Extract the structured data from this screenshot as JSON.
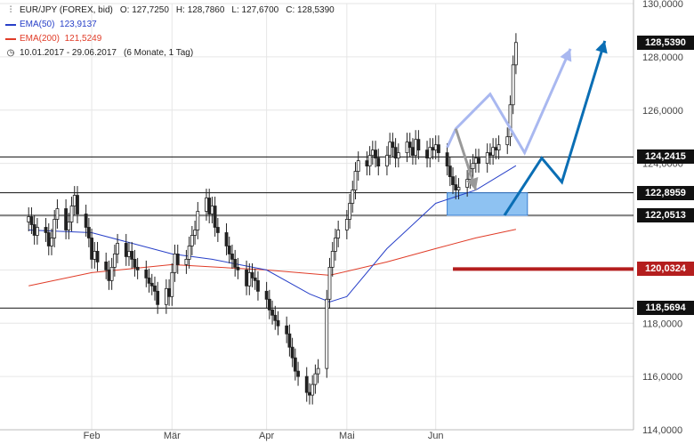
{
  "instrument": {
    "name": "EUR/JPY (FOREX, bid)",
    "open_label": "O:",
    "open": "127,7250",
    "high_label": "H:",
    "high": "128,7860",
    "low_label": "L:",
    "low": "127,6700",
    "close_label": "C:",
    "close": "128,5390",
    "bar_icon": "bar-chart-icon"
  },
  "indicators": [
    {
      "name": "EMA(50)",
      "value": "123,9137",
      "color": "#2840c8"
    },
    {
      "name": "EMA(200)",
      "value": "121,5249",
      "color": "#e03c28"
    }
  ],
  "period": {
    "icon": "clock-icon",
    "range": "10.01.2017 - 29.06.2017",
    "detail": "(6 Monate, 1 Tag)"
  },
  "price_labels": [
    {
      "text": "128,5390",
      "value": 128.539,
      "bg": "#111111"
    },
    {
      "text": "124,2415",
      "value": 124.2415,
      "bg": "#111111"
    },
    {
      "text": "122,8959",
      "value": 122.8959,
      "bg": "#111111"
    },
    {
      "text": "122,0513",
      "value": 122.0513,
      "bg": "#111111"
    },
    {
      "text": "120,0324",
      "value": 120.0324,
      "bg": "#b41e1e"
    },
    {
      "text": "118,5694",
      "value": 118.5694,
      "bg": "#111111"
    }
  ],
  "chart_data": {
    "type": "candlestick",
    "x_start": "2017-01-10",
    "x_end": "2017-06-29",
    "ylim": [
      114,
      130
    ],
    "y_ticks": [
      {
        "value": 114,
        "label": "114,0000"
      },
      {
        "value": 116,
        "label": "116,0000"
      },
      {
        "value": 118,
        "label": "118,0000"
      },
      {
        "value": 120,
        "label": "120,0000"
      },
      {
        "value": 122,
        "label": "122,0000"
      },
      {
        "value": 124,
        "label": "124,0000"
      },
      {
        "value": 126,
        "label": "126,0000"
      },
      {
        "value": 128,
        "label": "128,0000"
      },
      {
        "value": 130,
        "label": "130,0000"
      }
    ],
    "x_ticks": [
      {
        "date": "2017-02-01",
        "label": "Feb"
      },
      {
        "date": "2017-03-01",
        "label": "Mär"
      },
      {
        "date": "2017-04-03",
        "label": "Apr"
      },
      {
        "date": "2017-05-01",
        "label": "Mai"
      },
      {
        "date": "2017-06-01",
        "label": "Jun"
      }
    ],
    "close_series": [
      [
        "2017-01-10",
        122.0
      ],
      [
        "2017-01-11",
        121.7
      ],
      [
        "2017-01-12",
        121.3
      ],
      [
        "2017-01-13",
        121.6
      ],
      [
        "2017-01-16",
        121.4
      ],
      [
        "2017-01-17",
        120.9
      ],
      [
        "2017-01-18",
        121.2
      ],
      [
        "2017-01-19",
        121.9
      ],
      [
        "2017-01-20",
        122.3
      ],
      [
        "2017-01-23",
        121.5
      ],
      [
        "2017-01-24",
        121.8
      ],
      [
        "2017-01-25",
        122.4
      ],
      [
        "2017-01-26",
        122.8
      ],
      [
        "2017-01-27",
        122.1
      ],
      [
        "2017-01-30",
        121.6
      ],
      [
        "2017-01-31",
        121.2
      ],
      [
        "2017-02-01",
        120.4
      ],
      [
        "2017-02-02",
        120.7
      ],
      [
        "2017-02-03",
        120.3
      ],
      [
        "2017-02-06",
        120.0
      ],
      [
        "2017-02-07",
        119.6
      ],
      [
        "2017-02-08",
        120.1
      ],
      [
        "2017-02-09",
        120.6
      ],
      [
        "2017-02-10",
        121.0
      ],
      [
        "2017-02-13",
        120.5
      ],
      [
        "2017-02-14",
        120.7
      ],
      [
        "2017-02-15",
        120.4
      ],
      [
        "2017-02-16",
        120.1
      ],
      [
        "2017-02-17",
        120.0
      ],
      [
        "2017-02-20",
        119.7
      ],
      [
        "2017-02-21",
        119.5
      ],
      [
        "2017-02-22",
        119.4
      ],
      [
        "2017-02-23",
        119.2
      ],
      [
        "2017-02-24",
        118.7
      ],
      [
        "2017-02-27",
        119.3
      ],
      [
        "2017-02-28",
        119.0
      ],
      [
        "2017-03-01",
        119.9
      ],
      [
        "2017-03-02",
        120.6
      ],
      [
        "2017-03-03",
        120.2
      ],
      [
        "2017-03-06",
        120.4
      ],
      [
        "2017-03-07",
        120.9
      ],
      [
        "2017-03-08",
        121.3
      ],
      [
        "2017-03-09",
        121.5
      ],
      [
        "2017-03-10",
        122.2
      ],
      [
        "2017-03-13",
        122.7
      ],
      [
        "2017-03-14",
        122.1
      ],
      [
        "2017-03-15",
        122.4
      ],
      [
        "2017-03-16",
        121.6
      ],
      [
        "2017-03-17",
        121.4
      ],
      [
        "2017-03-20",
        120.9
      ],
      [
        "2017-03-21",
        120.6
      ],
      [
        "2017-03-22",
        120.4
      ],
      [
        "2017-03-23",
        120.1
      ],
      [
        "2017-03-24",
        120.0
      ],
      [
        "2017-03-27",
        119.4
      ],
      [
        "2017-03-28",
        119.9
      ],
      [
        "2017-03-29",
        119.7
      ],
      [
        "2017-03-30",
        119.6
      ],
      [
        "2017-03-31",
        119.2
      ],
      [
        "2017-04-03",
        118.9
      ],
      [
        "2017-04-04",
        118.5
      ],
      [
        "2017-04-05",
        118.3
      ],
      [
        "2017-04-06",
        118.1
      ],
      [
        "2017-04-07",
        117.9
      ],
      [
        "2017-04-10",
        117.6
      ],
      [
        "2017-04-11",
        117.1
      ],
      [
        "2017-04-12",
        116.7
      ],
      [
        "2017-04-13",
        116.2
      ],
      [
        "2017-04-14",
        116.0
      ],
      [
        "2017-04-17",
        115.4
      ],
      [
        "2017-04-18",
        115.3
      ],
      [
        "2017-04-19",
        115.7
      ],
      [
        "2017-04-20",
        116.1
      ],
      [
        "2017-04-21",
        116.3
      ],
      [
        "2017-04-24",
        118.9
      ],
      [
        "2017-04-25",
        120.1
      ],
      [
        "2017-04-26",
        120.7
      ],
      [
        "2017-04-27",
        121.2
      ],
      [
        "2017-04-28",
        121.5
      ],
      [
        "2017-05-01",
        121.9
      ],
      [
        "2017-05-02",
        122.5
      ],
      [
        "2017-05-03",
        123.0
      ],
      [
        "2017-05-04",
        123.7
      ],
      [
        "2017-05-05",
        124.1
      ],
      [
        "2017-05-08",
        123.9
      ],
      [
        "2017-05-09",
        124.3
      ],
      [
        "2017-05-10",
        124.5
      ],
      [
        "2017-05-11",
        124.2
      ],
      [
        "2017-05-12",
        123.9
      ],
      [
        "2017-05-15",
        124.3
      ],
      [
        "2017-05-16",
        124.8
      ],
      [
        "2017-05-17",
        124.6
      ],
      [
        "2017-05-18",
        124.2
      ],
      [
        "2017-05-19",
        124.4
      ],
      [
        "2017-05-22",
        124.8
      ],
      [
        "2017-05-23",
        124.6
      ],
      [
        "2017-05-24",
        124.3
      ],
      [
        "2017-05-25",
        124.9
      ],
      [
        "2017-05-26",
        124.5
      ],
      [
        "2017-05-29",
        124.2
      ],
      [
        "2017-05-30",
        124.6
      ],
      [
        "2017-05-31",
        124.5
      ],
      [
        "2017-06-01",
        124.7
      ],
      [
        "2017-06-02",
        124.4
      ],
      [
        "2017-06-05",
        123.9
      ],
      [
        "2017-06-06",
        123.5
      ],
      [
        "2017-06-07",
        123.2
      ],
      [
        "2017-06-08",
        123.0
      ],
      [
        "2017-06-09",
        123.1
      ],
      [
        "2017-06-12",
        123.4
      ],
      [
        "2017-06-13",
        123.8
      ],
      [
        "2017-06-14",
        124.0
      ],
      [
        "2017-06-15",
        124.2
      ],
      [
        "2017-06-16",
        124.0
      ],
      [
        "2017-06-19",
        124.4
      ],
      [
        "2017-06-20",
        124.3
      ],
      [
        "2017-06-21",
        124.6
      ],
      [
        "2017-06-22",
        124.5
      ],
      [
        "2017-06-23",
        124.7
      ],
      [
        "2017-06-26",
        125.0
      ],
      [
        "2017-06-27",
        126.2
      ],
      [
        "2017-06-28",
        127.7
      ],
      [
        "2017-06-29",
        128.539
      ]
    ],
    "ema50": [
      [
        "2017-01-10",
        121.5
      ],
      [
        "2017-02-01",
        121.4
      ],
      [
        "2017-02-15",
        121.0
      ],
      [
        "2017-03-01",
        120.6
      ],
      [
        "2017-03-15",
        120.4
      ],
      [
        "2017-04-03",
        120.0
      ],
      [
        "2017-04-18",
        119.1
      ],
      [
        "2017-04-25",
        118.8
      ],
      [
        "2017-05-01",
        119.0
      ],
      [
        "2017-05-15",
        120.8
      ],
      [
        "2017-06-01",
        122.5
      ],
      [
        "2017-06-15",
        123.0
      ],
      [
        "2017-06-29",
        123.9137
      ]
    ],
    "ema200": [
      [
        "2017-01-10",
        119.4
      ],
      [
        "2017-02-01",
        119.9
      ],
      [
        "2017-03-01",
        120.2
      ],
      [
        "2017-04-03",
        120.0
      ],
      [
        "2017-04-25",
        119.8
      ],
      [
        "2017-05-15",
        120.3
      ],
      [
        "2017-06-01",
        120.8
      ],
      [
        "2017-06-15",
        121.2
      ],
      [
        "2017-06-29",
        121.5249
      ]
    ],
    "horizontal_levels": [
      124.2415,
      122.8959,
      122.0513,
      118.5694
    ],
    "highlight_level": 120.0324,
    "support_zone": {
      "x_from": "2017-06-05",
      "x_to": "2017-07-03",
      "y_from": 122.0513,
      "y_to": 122.8959
    },
    "arrows": [
      {
        "name": "dark-blue",
        "color": "#0a6eb4",
        "points": [
          [
            "2017-06-25",
            122.05
          ],
          [
            "2017-07-08",
            124.2
          ],
          [
            "2017-07-15",
            123.3
          ],
          [
            "2017-07-30",
            128.6
          ]
        ]
      },
      {
        "name": "light-blue",
        "color": "#a9b8f0",
        "points": [
          [
            "2017-06-05",
            124.6
          ],
          [
            "2017-06-08",
            125.3
          ],
          [
            "2017-06-20",
            126.6
          ],
          [
            "2017-07-02",
            124.4
          ],
          [
            "2017-07-18",
            128.3
          ]
        ]
      },
      {
        "name": "grey",
        "color": "#999999",
        "points": [
          [
            "2017-06-08",
            125.3
          ],
          [
            "2017-06-15",
            123.0
          ]
        ]
      }
    ]
  }
}
